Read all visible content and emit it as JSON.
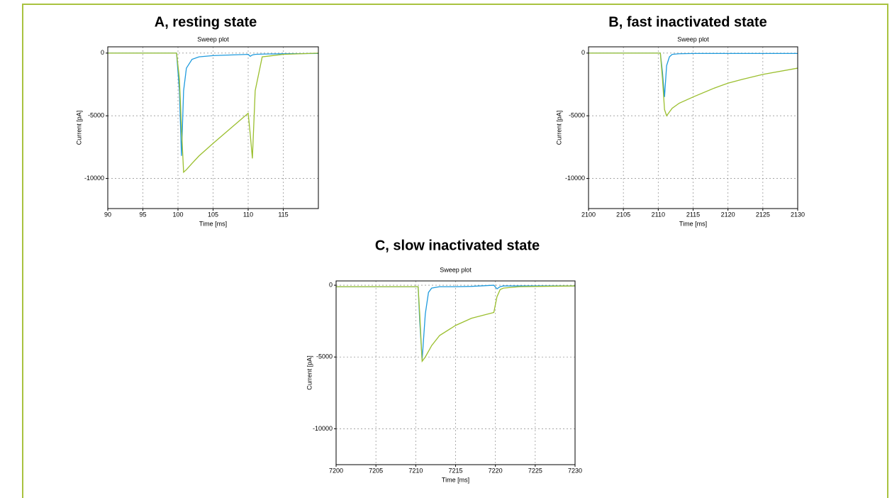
{
  "chart_data": [
    {
      "type": "line",
      "title": "A, resting state",
      "subtitle": "Sweep plot",
      "xlabel": "Time [ms]",
      "ylabel": "Current [pA]",
      "xlim": [
        90,
        120
      ],
      "ylim": [
        -12400,
        500
      ],
      "xticks": [
        90,
        95,
        100,
        105,
        110,
        115
      ],
      "yticks": [
        0,
        -5000,
        -10000
      ],
      "grid": true,
      "x": [
        90,
        99.8,
        100.2,
        100.5,
        100.8,
        101.2,
        102,
        103,
        105,
        107.5,
        110,
        110.3,
        110.6,
        111,
        112,
        115,
        120
      ],
      "series": [
        {
          "color": "#1f9bde",
          "values": [
            0,
            0,
            -3000,
            -8200,
            -3000,
            -1200,
            -500,
            -300,
            -200,
            -150,
            -100,
            -250,
            -150,
            -100,
            -80,
            -50,
            -30
          ]
        },
        {
          "color": "#9bbf2e",
          "values": [
            0,
            0,
            -2000,
            -6000,
            -9500,
            -9300,
            -8800,
            -8200,
            -7200,
            -6000,
            -4800,
            -6500,
            -8400,
            -3000,
            -300,
            -100,
            0
          ]
        }
      ]
    },
    {
      "type": "line",
      "title": "B, fast inactivated state",
      "subtitle": "Sweep plot",
      "xlabel": "Time [ms]",
      "ylabel": "Current [pA]",
      "xlim": [
        2100,
        2130
      ],
      "ylim": [
        -12400,
        500
      ],
      "xticks": [
        2100,
        2105,
        2110,
        2115,
        2120,
        2125,
        2130
      ],
      "yticks": [
        0,
        -5000,
        -10000
      ],
      "grid": true,
      "x": [
        2100,
        2110.3,
        2110.6,
        2110.9,
        2111.2,
        2111.6,
        2112,
        2113,
        2115,
        2118,
        2120,
        2122,
        2125,
        2130
      ],
      "series": [
        {
          "color": "#1f9bde",
          "values": [
            0,
            0,
            -1500,
            -3500,
            -1000,
            -300,
            -100,
            -50,
            -30,
            -30,
            -30,
            -30,
            -30,
            -30
          ]
        },
        {
          "color": "#9bbf2e",
          "values": [
            0,
            0,
            -2000,
            -4500,
            -5000,
            -4700,
            -4400,
            -4000,
            -3500,
            -2800,
            -2400,
            -2100,
            -1700,
            -1200
          ]
        }
      ]
    },
    {
      "type": "line",
      "title": "C, slow inactivated state",
      "subtitle": "Sweep plot",
      "xlabel": "Time [ms]",
      "ylabel": "Current [pA]",
      "xlim": [
        7200,
        7230
      ],
      "ylim": [
        -12500,
        300
      ],
      "xticks": [
        7200,
        7205,
        7210,
        7215,
        7220,
        7225,
        7230
      ],
      "yticks": [
        0,
        -5000,
        -10000
      ],
      "grid": true,
      "x": [
        7200,
        7210.3,
        7210.5,
        7210.8,
        7211.2,
        7211.6,
        7212,
        7213,
        7215,
        7217,
        7219.8,
        7220.2,
        7220.6,
        7221,
        7223,
        7230
      ],
      "series": [
        {
          "color": "#1f9bde",
          "values": [
            -100,
            -100,
            -2500,
            -5200,
            -2000,
            -500,
            -200,
            -100,
            -100,
            -80,
            0,
            -250,
            -100,
            -50,
            -50,
            -50
          ]
        },
        {
          "color": "#9bbf2e",
          "values": [
            -100,
            -100,
            -2000,
            -5300,
            -5000,
            -4600,
            -4200,
            -3500,
            -2800,
            -2300,
            -1900,
            -800,
            -300,
            -200,
            -100,
            -50
          ]
        }
      ]
    }
  ]
}
